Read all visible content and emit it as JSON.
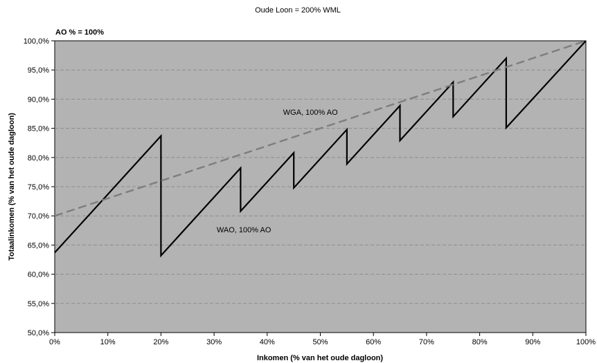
{
  "chart_data": {
    "type": "line",
    "title": "Oude Loon = 200% WML",
    "subtitle": "AO % = 100%",
    "xlabel": "Inkomen (% van het oude dagloon)",
    "ylabel": "Totaalinkomen (% van het oude dagloon)",
    "xlim": [
      0,
      100
    ],
    "ylim": [
      50,
      100
    ],
    "x_ticks": [
      0,
      10,
      20,
      30,
      40,
      50,
      60,
      70,
      80,
      90,
      100
    ],
    "x_tick_labels": [
      "0%",
      "10%",
      "20%",
      "30%",
      "40%",
      "50%",
      "60%",
      "70%",
      "80%",
      "90%",
      "100%"
    ],
    "y_ticks": [
      50,
      55,
      60,
      65,
      70,
      75,
      80,
      85,
      90,
      95,
      100
    ],
    "y_tick_labels": [
      "50,0%",
      "55,0%",
      "60,0%",
      "65,0%",
      "70,0%",
      "75,0%",
      "80,0%",
      "85,0%",
      "90,0%",
      "95,0%",
      "100,0%"
    ],
    "grid": true,
    "plot_background": "#b3b3b3",
    "series": [
      {
        "name": "WAO, 100% AO",
        "style": "solid",
        "color": "#000000",
        "points": [
          [
            0,
            63.7
          ],
          [
            20,
            83.7
          ],
          [
            20,
            63.2
          ],
          [
            35,
            78.2
          ],
          [
            35,
            70.8
          ],
          [
            45,
            80.8
          ],
          [
            45,
            74.8
          ],
          [
            55,
            84.8
          ],
          [
            55,
            78.9
          ],
          [
            65,
            88.9
          ],
          [
            65,
            82.9
          ],
          [
            75,
            92.9
          ],
          [
            75,
            87.0
          ],
          [
            85,
            97.0
          ],
          [
            85,
            85.1
          ],
          [
            100,
            100.0
          ]
        ]
      },
      {
        "name": "WGA, 100% AO",
        "style": "dashed",
        "color": "#7f7f7f",
        "points": [
          [
            0,
            70.0
          ],
          [
            100,
            100.0
          ]
        ]
      }
    ],
    "annotations": [
      {
        "text": "WGA, 100% AO",
        "x": 43,
        "y": 87.3
      },
      {
        "text": "WAO, 100% AO",
        "x": 30.5,
        "y": 67.2
      }
    ]
  }
}
